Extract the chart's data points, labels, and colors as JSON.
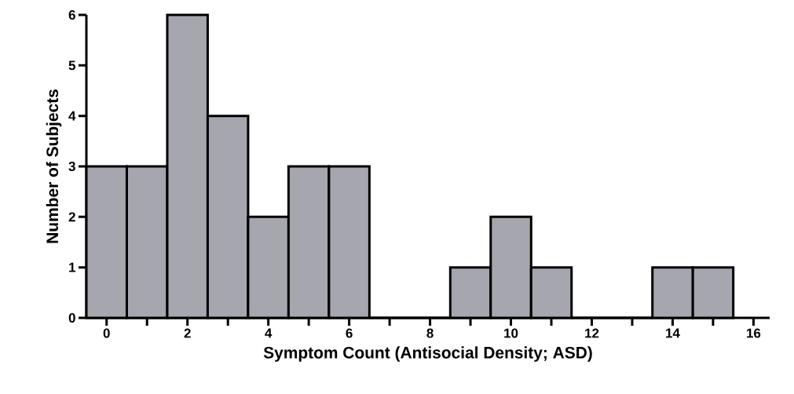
{
  "chart_data": {
    "type": "histogram",
    "xlabel": "Symptom Count (Antisocial Density; ASD)",
    "ylabel": "Number of Subjects",
    "bins": [
      -0.5,
      0.5,
      1.5,
      2.5,
      3.5,
      4.5,
      5.5,
      6.5,
      7.5,
      8.5,
      9.5,
      10.5,
      11.5,
      12.5,
      13.5,
      14.5,
      15.5
    ],
    "values": [
      3,
      3,
      6,
      4,
      2,
      3,
      3,
      0,
      0,
      1,
      2,
      1,
      0,
      0,
      1,
      1
    ],
    "color": "#a6a6ae",
    "xlim": [
      -0.5,
      16.4
    ],
    "ylim": [
      0,
      6
    ],
    "xticks": [
      0,
      {
        "value": 1,
        "label": null
      },
      2,
      {
        "value": 3,
        "label": null
      },
      4,
      {
        "value": 5,
        "label": null
      },
      6,
      {
        "value": 7,
        "label": null
      },
      8,
      {
        "value": 9,
        "label": null
      },
      10,
      {
        "value": 11,
        "label": null
      },
      12,
      {
        "value": 13,
        "label": null
      },
      14,
      {
        "value": 15,
        "label": null
      },
      16
    ],
    "yticks": [
      0,
      1,
      2,
      3,
      4,
      5,
      6
    ]
  }
}
